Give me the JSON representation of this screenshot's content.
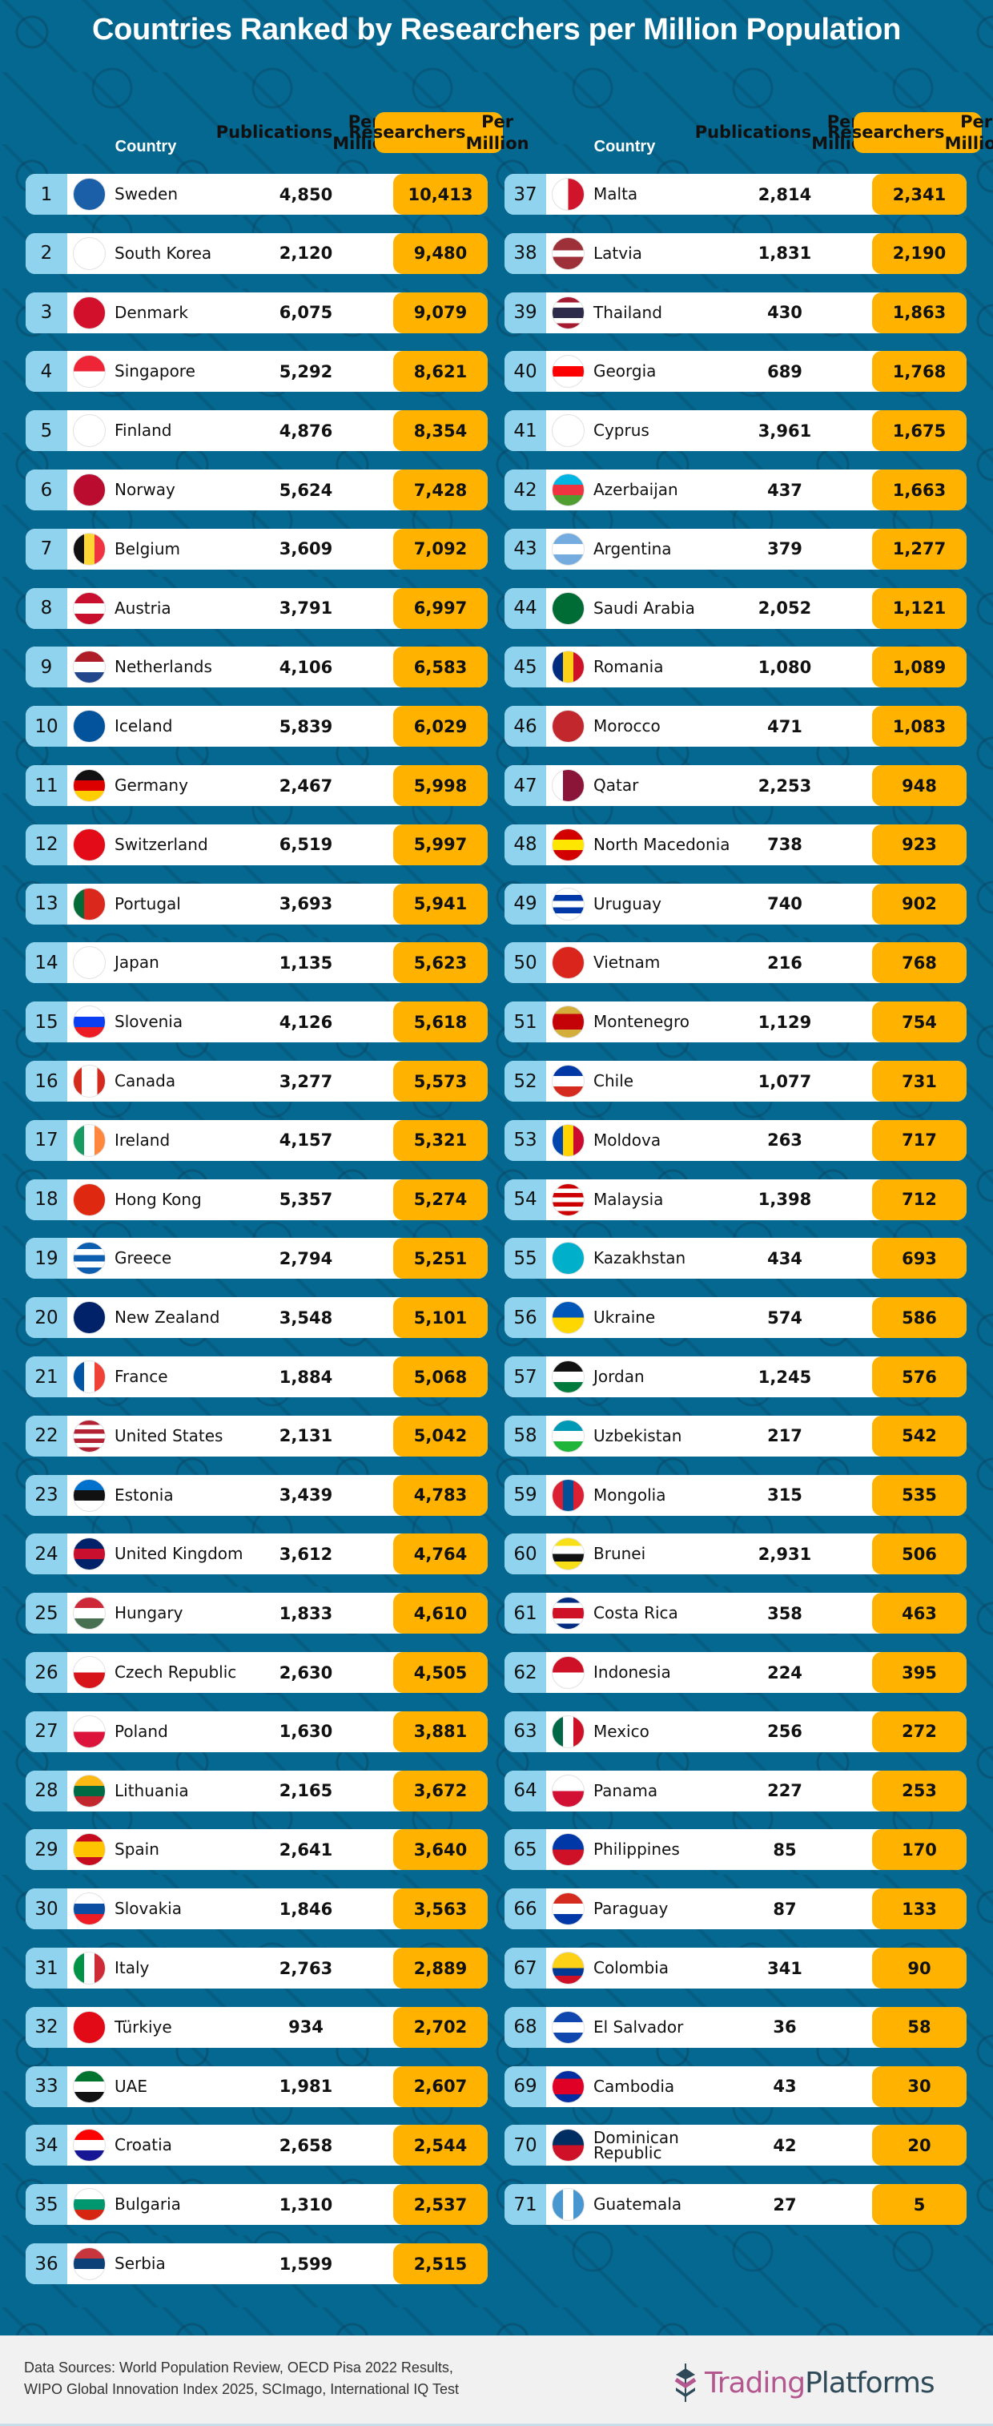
{
  "title": "Countries Ranked by Researchers per Million Population",
  "columns": {
    "country": "Country",
    "publications": "Publications\nPer Million",
    "publications_line1": "Publications",
    "publications_line2": "Per Million",
    "researchers_line1": "Researchers",
    "researchers_line2": "Per Million"
  },
  "colors": {
    "background": "#046891",
    "rank_cell": "#8fd3ee",
    "researchers_cell": "#ffb300",
    "row": "#ffffff",
    "footer": "#f1f1f1",
    "logo_primary": "#b5578f",
    "logo_secondary": "#2f4a58"
  },
  "rows": [
    {
      "rank": "1",
      "country": "Sweden",
      "publications": "4,850",
      "researchers": "10,413",
      "flag": [
        "h",
        "#1a5fa8",
        "#1a5fa8"
      ]
    },
    {
      "rank": "2",
      "country": "South Korea",
      "publications": "2,120",
      "researchers": "9,480",
      "flag": [
        "h",
        "#ffffff",
        "#ffffff"
      ]
    },
    {
      "rank": "3",
      "country": "Denmark",
      "publications": "6,075",
      "researchers": "9,079",
      "flag": [
        "h",
        "#d3102b",
        "#d3102b"
      ]
    },
    {
      "rank": "4",
      "country": "Singapore",
      "publications": "5,292",
      "researchers": "8,621",
      "flag": [
        "h",
        "#ee2536",
        "#ffffff"
      ]
    },
    {
      "rank": "5",
      "country": "Finland",
      "publications": "4,876",
      "researchers": "8,354",
      "flag": [
        "h",
        "#ffffff",
        "#ffffff"
      ]
    },
    {
      "rank": "6",
      "country": "Norway",
      "publications": "5,624",
      "researchers": "7,428",
      "flag": [
        "h",
        "#ba0c2f",
        "#ba0c2f"
      ]
    },
    {
      "rank": "7",
      "country": "Belgium",
      "publications": "3,609",
      "researchers": "7,092",
      "flag": [
        "v",
        "#111111",
        "#fdd835",
        "#ef3340"
      ]
    },
    {
      "rank": "8",
      "country": "Austria",
      "publications": "3,791",
      "researchers": "6,997",
      "flag": [
        "h",
        "#c8102e",
        "#ffffff",
        "#c8102e"
      ]
    },
    {
      "rank": "9",
      "country": "Netherlands",
      "publications": "4,106",
      "researchers": "6,583",
      "flag": [
        "h",
        "#ae1c28",
        "#ffffff",
        "#21468b"
      ]
    },
    {
      "rank": "10",
      "country": "Iceland",
      "publications": "5,839",
      "researchers": "6,029",
      "flag": [
        "h",
        "#02529c",
        "#02529c"
      ]
    },
    {
      "rank": "11",
      "country": "Germany",
      "publications": "2,467",
      "researchers": "5,998",
      "flag": [
        "h",
        "#111111",
        "#dd0000",
        "#ffce00"
      ]
    },
    {
      "rank": "12",
      "country": "Switzerland",
      "publications": "6,519",
      "researchers": "5,997",
      "flag": [
        "h",
        "#e30b17",
        "#e30b17"
      ]
    },
    {
      "rank": "13",
      "country": "Portugal",
      "publications": "3,693",
      "researchers": "5,941",
      "flag": [
        "v",
        "#046a38",
        "#da291c",
        "#da291c"
      ]
    },
    {
      "rank": "14",
      "country": "Japan",
      "publications": "1,135",
      "researchers": "5,623",
      "flag": [
        "h",
        "#ffffff",
        "#ffffff"
      ]
    },
    {
      "rank": "15",
      "country": "Slovenia",
      "publications": "4,126",
      "researchers": "5,618",
      "flag": [
        "h",
        "#ffffff",
        "#0d3ff2",
        "#ed1c24"
      ]
    },
    {
      "rank": "16",
      "country": "Canada",
      "publications": "3,277",
      "researchers": "5,573",
      "flag": [
        "v",
        "#d52b1e",
        "#ffffff",
        "#ffffff",
        "#d52b1e"
      ]
    },
    {
      "rank": "17",
      "country": "Ireland",
      "publications": "4,157",
      "researchers": "5,321",
      "flag": [
        "v",
        "#169b62",
        "#ffffff",
        "#ff883e"
      ]
    },
    {
      "rank": "18",
      "country": "Hong Kong",
      "publications": "5,357",
      "researchers": "5,274",
      "flag": [
        "h",
        "#de2910",
        "#de2910"
      ]
    },
    {
      "rank": "19",
      "country": "Greece",
      "publications": "2,794",
      "researchers": "5,251",
      "flag": [
        "h",
        "#0d5eaf",
        "#ffffff",
        "#0d5eaf",
        "#ffffff",
        "#0d5eaf"
      ]
    },
    {
      "rank": "20",
      "country": "New Zealand",
      "publications": "3,548",
      "researchers": "5,101",
      "flag": [
        "h",
        "#012169",
        "#012169"
      ]
    },
    {
      "rank": "21",
      "country": "France",
      "publications": "1,884",
      "researchers": "5,068",
      "flag": [
        "v",
        "#0055a4",
        "#ffffff",
        "#ef4135"
      ]
    },
    {
      "rank": "22",
      "country": "United States",
      "publications": "2,131",
      "researchers": "5,042",
      "flag": [
        "h",
        "#b22234",
        "#ffffff",
        "#b22234",
        "#ffffff",
        "#b22234",
        "#ffffff",
        "#b22234"
      ]
    },
    {
      "rank": "23",
      "country": "Estonia",
      "publications": "3,439",
      "researchers": "4,783",
      "flag": [
        "h",
        "#0072ce",
        "#111111",
        "#ffffff"
      ]
    },
    {
      "rank": "24",
      "country": "United Kingdom",
      "publications": "3,612",
      "researchers": "4,764",
      "flag": [
        "h",
        "#012169",
        "#c8102e",
        "#012169"
      ]
    },
    {
      "rank": "25",
      "country": "Hungary",
      "publications": "1,833",
      "researchers": "4,610",
      "flag": [
        "h",
        "#ce2939",
        "#ffffff",
        "#477050"
      ]
    },
    {
      "rank": "26",
      "country": "Czech Republic",
      "publications": "2,630",
      "researchers": "4,505",
      "flag": [
        "h",
        "#ffffff",
        "#d7141a"
      ]
    },
    {
      "rank": "27",
      "country": "Poland",
      "publications": "1,630",
      "researchers": "3,881",
      "flag": [
        "h",
        "#ffffff",
        "#dc143c"
      ]
    },
    {
      "rank": "28",
      "country": "Lithuania",
      "publications": "2,165",
      "researchers": "3,672",
      "flag": [
        "h",
        "#fdb913",
        "#006a44",
        "#c1272d"
      ]
    },
    {
      "rank": "29",
      "country": "Spain",
      "publications": "2,641",
      "researchers": "3,640",
      "flag": [
        "h",
        "#c60b1e",
        "#ffc400",
        "#ffc400",
        "#c60b1e"
      ]
    },
    {
      "rank": "30",
      "country": "Slovakia",
      "publications": "1,846",
      "researchers": "3,563",
      "flag": [
        "h",
        "#ffffff",
        "#0b4ea2",
        "#ee1c25"
      ]
    },
    {
      "rank": "31",
      "country": "Italy",
      "publications": "2,763",
      "researchers": "2,889",
      "flag": [
        "v",
        "#009246",
        "#ffffff",
        "#ce2b37"
      ]
    },
    {
      "rank": "32",
      "country": "Türkiye",
      "publications": "934",
      "researchers": "2,702",
      "flag": [
        "h",
        "#e30a17",
        "#e30a17"
      ]
    },
    {
      "rank": "33",
      "country": "UAE",
      "publications": "1,981",
      "researchers": "2,607",
      "flag": [
        "h",
        "#00732f",
        "#ffffff",
        "#111111"
      ]
    },
    {
      "rank": "34",
      "country": "Croatia",
      "publications": "2,658",
      "researchers": "2,544",
      "flag": [
        "h",
        "#ff0000",
        "#ffffff",
        "#171796"
      ]
    },
    {
      "rank": "35",
      "country": "Bulgaria",
      "publications": "1,310",
      "researchers": "2,537",
      "flag": [
        "h",
        "#ffffff",
        "#00966e",
        "#d62612"
      ]
    },
    {
      "rank": "36",
      "country": "Serbia",
      "publications": "1,599",
      "researchers": "2,515",
      "flag": [
        "h",
        "#c6363c",
        "#0c4076",
        "#ffffff"
      ]
    },
    {
      "rank": "37",
      "country": "Malta",
      "publications": "2,814",
      "researchers": "2,341",
      "flag": [
        "v",
        "#ffffff",
        "#cf142b"
      ]
    },
    {
      "rank": "38",
      "country": "Latvia",
      "publications": "1,831",
      "researchers": "2,190",
      "flag": [
        "h",
        "#9e3039",
        "#9e3039",
        "#ffffff",
        "#9e3039",
        "#9e3039"
      ]
    },
    {
      "rank": "39",
      "country": "Thailand",
      "publications": "430",
      "researchers": "1,863",
      "flag": [
        "h",
        "#a51931",
        "#ffffff",
        "#2d2a4a",
        "#2d2a4a",
        "#ffffff",
        "#a51931"
      ]
    },
    {
      "rank": "40",
      "country": "Georgia",
      "publications": "689",
      "researchers": "1,768",
      "flag": [
        "h",
        "#ffffff",
        "#ff0000",
        "#ffffff"
      ]
    },
    {
      "rank": "41",
      "country": "Cyprus",
      "publications": "3,961",
      "researchers": "1,675",
      "flag": [
        "h",
        "#ffffff",
        "#ffffff"
      ]
    },
    {
      "rank": "42",
      "country": "Azerbaijan",
      "publications": "437",
      "researchers": "1,663",
      "flag": [
        "h",
        "#00b5e2",
        "#ef3340",
        "#509e2f"
      ]
    },
    {
      "rank": "43",
      "country": "Argentina",
      "publications": "379",
      "researchers": "1,277",
      "flag": [
        "h",
        "#74acdf",
        "#ffffff",
        "#74acdf"
      ]
    },
    {
      "rank": "44",
      "country": "Saudi Arabia",
      "publications": "2,052",
      "researchers": "1,121",
      "flag": [
        "h",
        "#006c35",
        "#006c35"
      ]
    },
    {
      "rank": "45",
      "country": "Romania",
      "publications": "1,080",
      "researchers": "1,089",
      "flag": [
        "v",
        "#002b7f",
        "#fcd116",
        "#ce1126"
      ]
    },
    {
      "rank": "46",
      "country": "Morocco",
      "publications": "471",
      "researchers": "1,083",
      "flag": [
        "h",
        "#c1272d",
        "#c1272d"
      ]
    },
    {
      "rank": "47",
      "country": "Qatar",
      "publications": "2,253",
      "researchers": "948",
      "flag": [
        "v",
        "#ffffff",
        "#8a1538",
        "#8a1538"
      ]
    },
    {
      "rank": "48",
      "country": "North Macedonia",
      "publications": "738",
      "researchers": "923",
      "flag": [
        "h",
        "#d20000",
        "#ffe600",
        "#d20000"
      ]
    },
    {
      "rank": "49",
      "country": "Uruguay",
      "publications": "740",
      "researchers": "902",
      "flag": [
        "h",
        "#ffffff",
        "#0038a8",
        "#ffffff",
        "#0038a8",
        "#ffffff"
      ]
    },
    {
      "rank": "50",
      "country": "Vietnam",
      "publications": "216",
      "researchers": "768",
      "flag": [
        "h",
        "#da251d",
        "#da251d"
      ]
    },
    {
      "rank": "51",
      "country": "Montenegro",
      "publications": "1,129",
      "researchers": "754",
      "flag": [
        "h",
        "#d3ae3b",
        "#c40308",
        "#c40308",
        "#d3ae3b"
      ]
    },
    {
      "rank": "52",
      "country": "Chile",
      "publications": "1,077",
      "researchers": "731",
      "flag": [
        "h",
        "#0039a6",
        "#ffffff",
        "#d52b1e"
      ]
    },
    {
      "rank": "53",
      "country": "Moldova",
      "publications": "263",
      "researchers": "717",
      "flag": [
        "v",
        "#0046ae",
        "#ffd200",
        "#cc092f"
      ]
    },
    {
      "rank": "54",
      "country": "Malaysia",
      "publications": "1,398",
      "researchers": "712",
      "flag": [
        "h",
        "#cc0001",
        "#ffffff",
        "#cc0001",
        "#ffffff",
        "#cc0001",
        "#ffffff",
        "#cc0001"
      ]
    },
    {
      "rank": "55",
      "country": "Kazakhstan",
      "publications": "434",
      "researchers": "693",
      "flag": [
        "h",
        "#00afca",
        "#00afca"
      ]
    },
    {
      "rank": "56",
      "country": "Ukraine",
      "publications": "574",
      "researchers": "586",
      "flag": [
        "h",
        "#0057b7",
        "#ffd700"
      ]
    },
    {
      "rank": "57",
      "country": "Jordan",
      "publications": "1,245",
      "researchers": "576",
      "flag": [
        "h",
        "#111111",
        "#ffffff",
        "#007a3d"
      ]
    },
    {
      "rank": "58",
      "country": "Uzbekistan",
      "publications": "217",
      "researchers": "542",
      "flag": [
        "h",
        "#0099b5",
        "#ffffff",
        "#1eb53a"
      ]
    },
    {
      "rank": "59",
      "country": "Mongolia",
      "publications": "315",
      "researchers": "535",
      "flag": [
        "v",
        "#da2032",
        "#015197",
        "#da2032"
      ]
    },
    {
      "rank": "60",
      "country": "Brunei",
      "publications": "2,931",
      "researchers": "506",
      "flag": [
        "h",
        "#f7e017",
        "#ffffff",
        "#111111",
        "#f7e017"
      ]
    },
    {
      "rank": "61",
      "country": "Costa Rica",
      "publications": "358",
      "researchers": "463",
      "flag": [
        "h",
        "#002b7f",
        "#ffffff",
        "#ce1126",
        "#ce1126",
        "#ffffff",
        "#002b7f"
      ]
    },
    {
      "rank": "62",
      "country": "Indonesia",
      "publications": "224",
      "researchers": "395",
      "flag": [
        "h",
        "#ce1126",
        "#ffffff"
      ]
    },
    {
      "rank": "63",
      "country": "Mexico",
      "publications": "256",
      "researchers": "272",
      "flag": [
        "v",
        "#006847",
        "#ffffff",
        "#ce1126"
      ]
    },
    {
      "rank": "64",
      "country": "Panama",
      "publications": "227",
      "researchers": "253",
      "flag": [
        "h",
        "#ffffff",
        "#d21034"
      ]
    },
    {
      "rank": "65",
      "country": "Philippines",
      "publications": "85",
      "researchers": "170",
      "flag": [
        "h",
        "#0038a8",
        "#ce1126"
      ]
    },
    {
      "rank": "66",
      "country": "Paraguay",
      "publications": "87",
      "researchers": "133",
      "flag": [
        "h",
        "#d52b1e",
        "#ffffff",
        "#0038a8"
      ]
    },
    {
      "rank": "67",
      "country": "Colombia",
      "publications": "341",
      "researchers": "90",
      "flag": [
        "h",
        "#fcd116",
        "#fcd116",
        "#003893",
        "#ce1126"
      ]
    },
    {
      "rank": "68",
      "country": "El Salvador",
      "publications": "36",
      "researchers": "58",
      "flag": [
        "h",
        "#0f47af",
        "#ffffff",
        "#0f47af"
      ]
    },
    {
      "rank": "69",
      "country": "Cambodia",
      "publications": "43",
      "researchers": "30",
      "flag": [
        "h",
        "#032ea1",
        "#e00025",
        "#e00025",
        "#032ea1"
      ]
    },
    {
      "rank": "70",
      "country": "Dominican\nRepublic",
      "publications": "42",
      "researchers": "20",
      "flag": [
        "h",
        "#002d62",
        "#ce1126"
      ]
    },
    {
      "rank": "71",
      "country": "Guatemala",
      "publications": "27",
      "researchers": "5",
      "flag": [
        "v",
        "#4997d0",
        "#ffffff",
        "#4997d0"
      ]
    }
  ],
  "footer": {
    "sources_line1": "Data Sources: World Population Review, OECD Pisa 2022 Results,",
    "sources_line2": "WIPO Global Innovation Index 2025, SCImago, International IQ Test",
    "logo_part1": "Trading",
    "logo_part2": "Platforms"
  }
}
